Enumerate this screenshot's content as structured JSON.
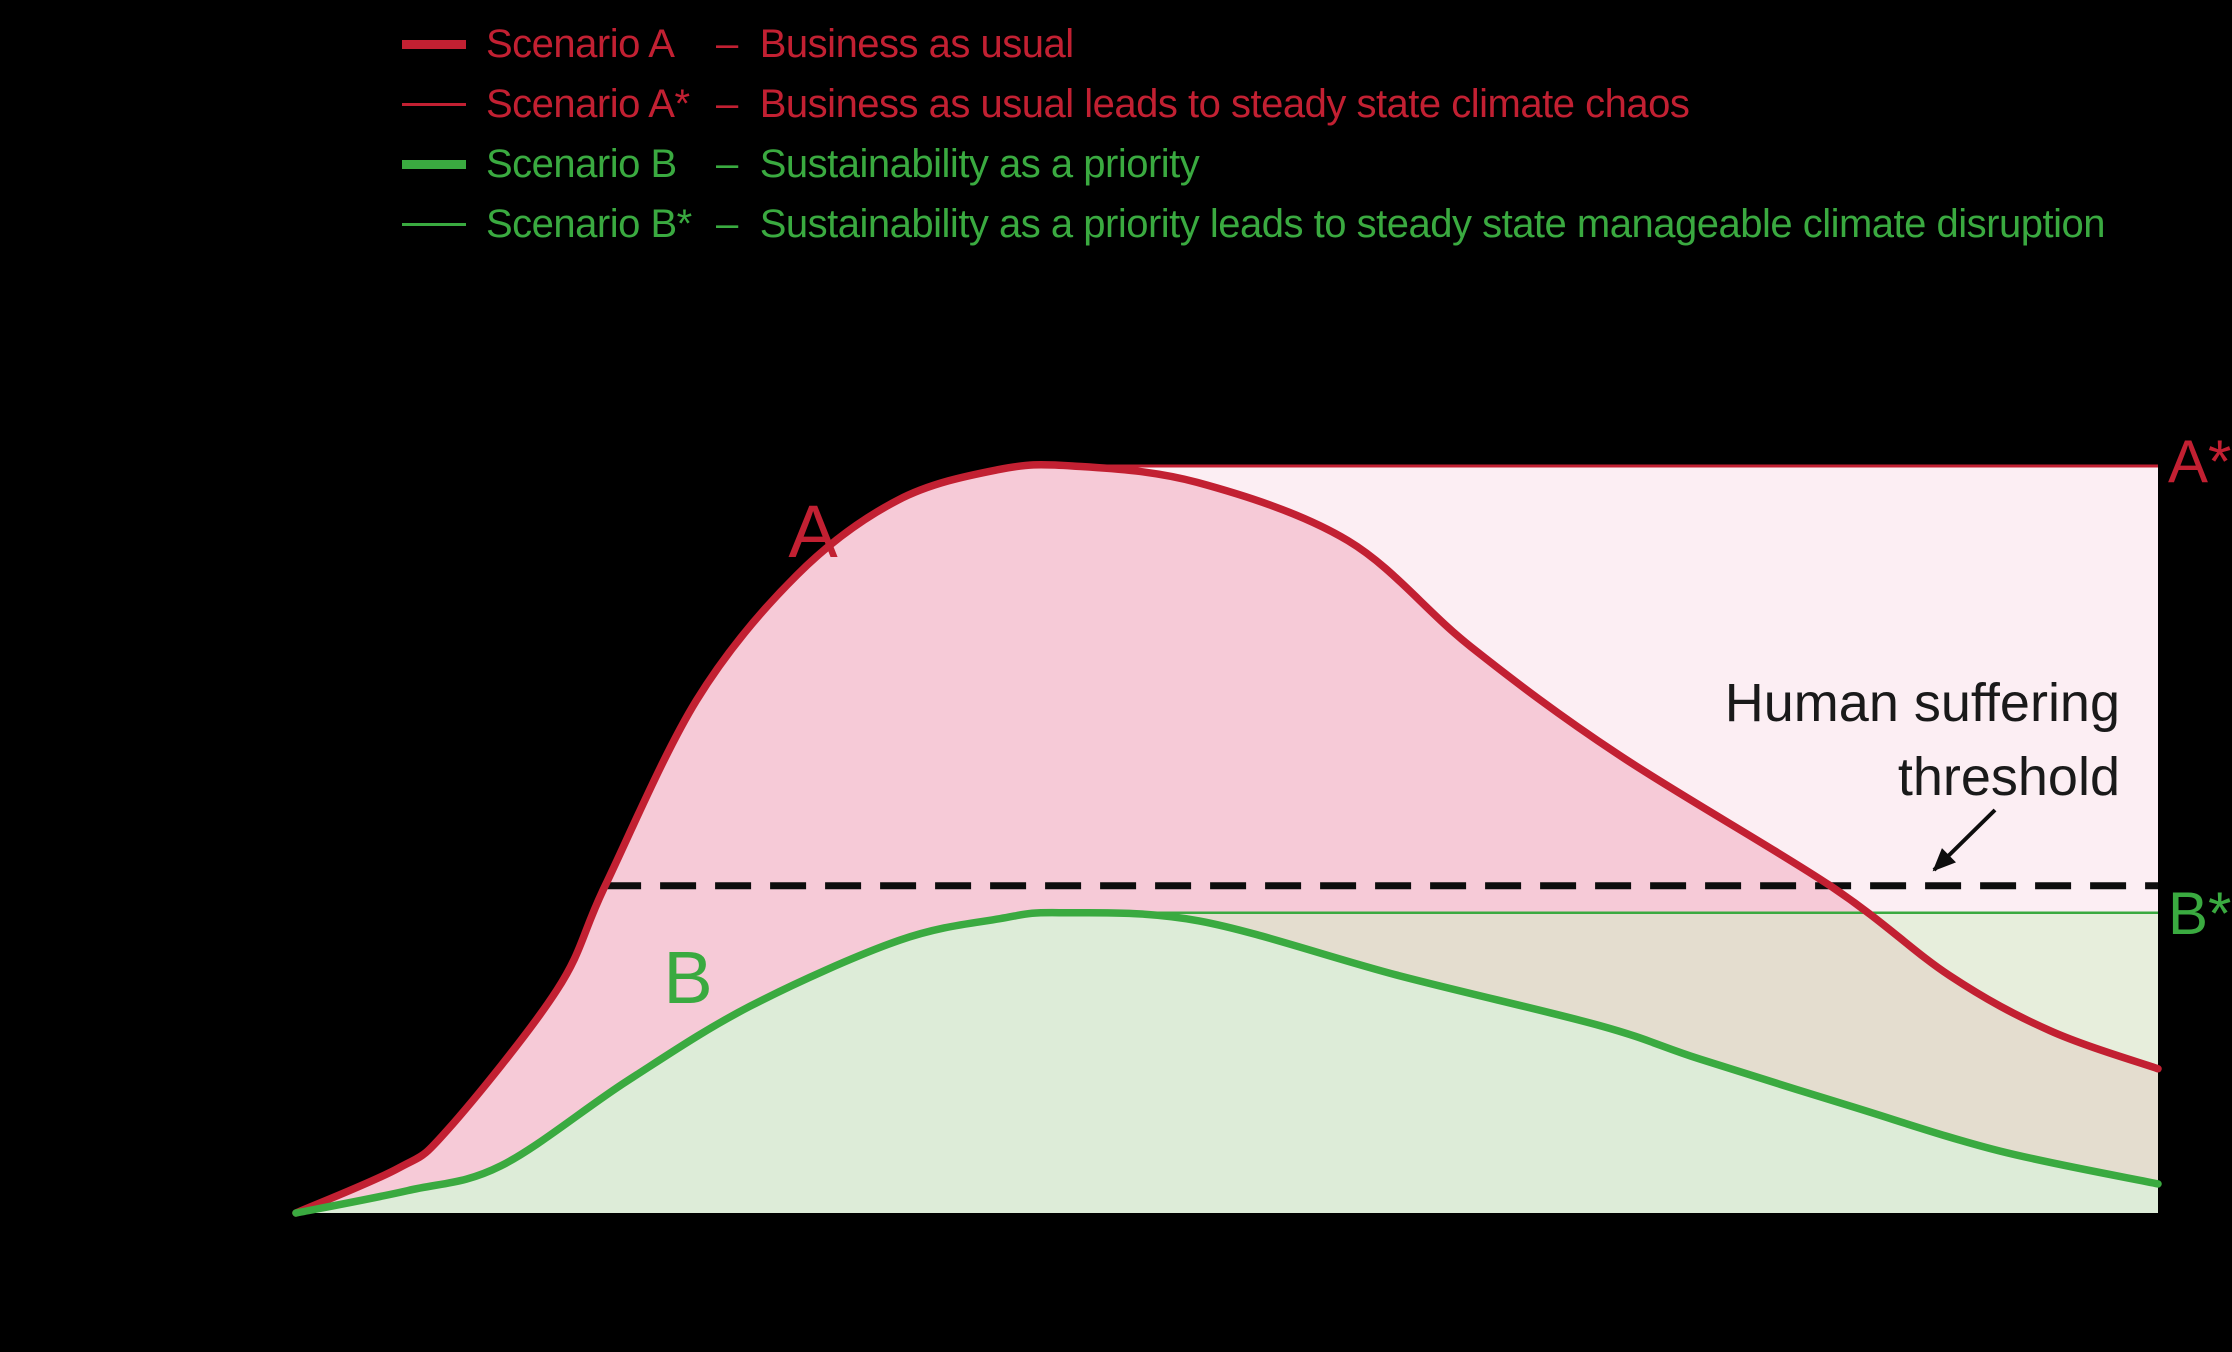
{
  "colors": {
    "background": "#000000",
    "scenario_a": "#c22032",
    "scenario_b": "#3aaa40",
    "fill_a_band": "#f6cad7",
    "fill_a_steady": "#fceef3",
    "fill_b": "#ddecd8",
    "fill_b_steady": "rgba(211,237,200,0.52)",
    "threshold_line": "#0d0d0d",
    "threshold_text": "#1a1a1a"
  },
  "legend": {
    "items": [
      {
        "name": "Scenario A",
        "sep": "–",
        "desc": "Business as usual",
        "color": "scenario_a",
        "swatch": "thick"
      },
      {
        "name": "Scenario A*",
        "sep": "–",
        "desc": "Business as usual leads to steady state climate chaos",
        "color": "scenario_a",
        "swatch": "thin"
      },
      {
        "name": "Scenario B",
        "sep": "–",
        "desc": "Sustainability as a priority",
        "color": "scenario_b",
        "swatch": "thick"
      },
      {
        "name": "Scenario B*",
        "sep": "–",
        "desc": "Sustainability as a priority leads to steady state manageable climate disruption",
        "color": "scenario_b",
        "swatch": "thin"
      }
    ]
  },
  "annotations": {
    "curve_a_label": "A",
    "curve_b_label": "B",
    "a_star_label": "A*",
    "b_star_label": "B*",
    "threshold_label_line1": "Human suffering",
    "threshold_label_line2": "threshold"
  },
  "chart_data": {
    "type": "area",
    "title": "",
    "axes_visible": false,
    "x_range": [
      0,
      1
    ],
    "y_range": [
      0,
      1
    ],
    "legend_position": "top-left",
    "series": [
      {
        "id": "A",
        "name": "Scenario A - Business as usual",
        "color": "#c22032",
        "stroke_width": 7.5,
        "points": [
          [
            0.0,
            0.0
          ],
          [
            0.055,
            0.06
          ],
          [
            0.081,
            0.11
          ],
          [
            0.14,
            0.298
          ],
          [
            0.166,
            0.438
          ],
          [
            0.215,
            0.686
          ],
          [
            0.269,
            0.854
          ],
          [
            0.323,
            0.954
          ],
          [
            0.377,
            0.995
          ],
          [
            0.417,
            1.0
          ],
          [
            0.484,
            0.978
          ],
          [
            0.565,
            0.9
          ],
          [
            0.631,
            0.758
          ],
          [
            0.71,
            0.614
          ],
          [
            0.824,
            0.438
          ],
          [
            0.888,
            0.318
          ],
          [
            0.942,
            0.244
          ],
          [
            1.0,
            0.193
          ]
        ]
      },
      {
        "id": "B",
        "name": "Scenario B - Sustainability as a priority",
        "color": "#3aaa40",
        "stroke_width": 7.5,
        "points": [
          [
            0.0,
            0.0
          ],
          [
            0.06,
            0.03
          ],
          [
            0.11,
            0.063
          ],
          [
            0.178,
            0.177
          ],
          [
            0.244,
            0.277
          ],
          [
            0.324,
            0.365
          ],
          [
            0.378,
            0.394
          ],
          [
            0.41,
            0.402
          ],
          [
            0.485,
            0.391
          ],
          [
            0.592,
            0.318
          ],
          [
            0.7,
            0.251
          ],
          [
            0.754,
            0.206
          ],
          [
            0.835,
            0.143
          ],
          [
            0.915,
            0.083
          ],
          [
            1.0,
            0.039
          ]
        ]
      }
    ],
    "reference_lines": [
      {
        "id": "A*",
        "label": "A*",
        "value": 1.0,
        "color": "#c22032",
        "style": "thin-solid",
        "description": "steady state climate chaos level, fills to curve A",
        "fill_color": "#fceef3"
      },
      {
        "id": "B*",
        "label": "B*",
        "value": 0.402,
        "color": "#3aaa40",
        "style": "thin-solid",
        "description": "steady state manageable climate disruption level, fills to curve B",
        "fill_color": "rgba(211,237,200,0.52)"
      },
      {
        "id": "threshold",
        "label": "Human suffering threshold",
        "value": 0.438,
        "color": "#0d0d0d",
        "style": "dashed"
      }
    ]
  }
}
